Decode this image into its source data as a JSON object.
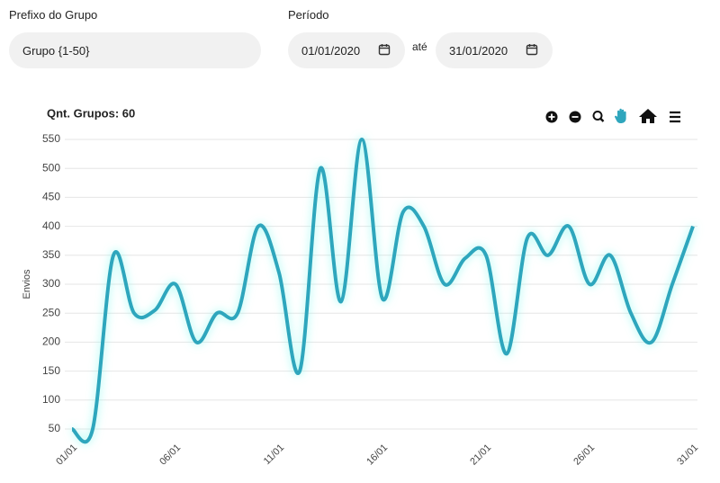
{
  "form": {
    "group_prefix": {
      "label": "Prefixo do Grupo",
      "value": "Grupo {1-50}"
    },
    "period": {
      "label": "Período",
      "start": "01/01/2020",
      "separator": "até",
      "end": "31/01/2020"
    }
  },
  "chart_data": {
    "type": "line",
    "title": "Qnt. Grupos: 60",
    "y_label": "Envios",
    "categories": [
      "01/01",
      null,
      null,
      null,
      null,
      "06/01",
      null,
      null,
      null,
      null,
      "11/01",
      null,
      null,
      null,
      null,
      "16/01",
      null,
      null,
      null,
      null,
      "21/01",
      null,
      null,
      null,
      null,
      "26/01",
      null,
      null,
      null,
      null,
      "31/01"
    ],
    "values": [
      50,
      50,
      350,
      250,
      255,
      300,
      200,
      250,
      250,
      400,
      320,
      150,
      500,
      270,
      550,
      275,
      425,
      400,
      300,
      345,
      350,
      180,
      380,
      350,
      400,
      300,
      350,
      250,
      200,
      300,
      400
    ],
    "color": "#2fa6bd",
    "ylim": [
      50,
      550
    ],
    "yticks": [
      50,
      100,
      150,
      200,
      250,
      300,
      350,
      400,
      450,
      500,
      550
    ],
    "grid": true
  }
}
